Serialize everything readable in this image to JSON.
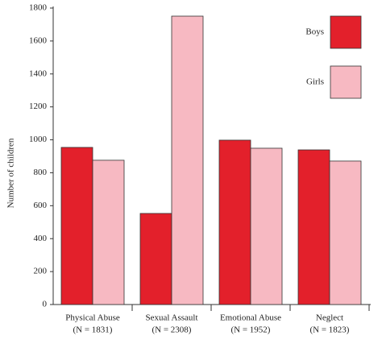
{
  "chart_data": {
    "type": "bar",
    "y_label": "Number of children",
    "categories": [
      "Physical Abuse",
      "Sexual Assault",
      "Emotional Abuse",
      "Neglect"
    ],
    "category_notes": [
      "(N = 1831)",
      "(N = 2308)",
      "(N = 1952)",
      "(N = 1823)"
    ],
    "series": [
      {
        "name": "Boys",
        "color": "#e3202b",
        "values": [
          954,
          553,
          998,
          939
        ]
      },
      {
        "name": "Girls",
        "color": "#f7b9c2",
        "values": [
          876,
          1751,
          949,
          871
        ]
      }
    ],
    "ylim": [
      0,
      1800
    ],
    "yticks": [
      0,
      200,
      400,
      600,
      800,
      1000,
      1200,
      1400,
      1600,
      1800
    ],
    "legend": "top-right",
    "grid": false
  }
}
